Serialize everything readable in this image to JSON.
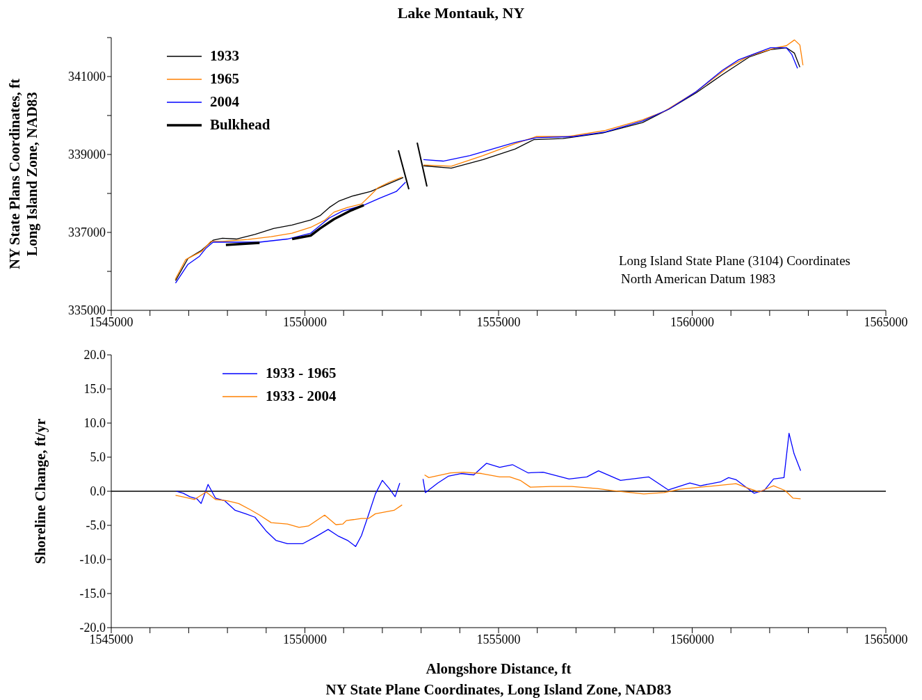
{
  "chart_data": [
    {
      "type": "line",
      "title": "Lake Montauk, NY",
      "ylabel": "NY State Plans Coordinates, ft\nLong Island Zone, NAD83",
      "annotations": [
        "Long Island State Plane (3104) Coordinates",
        "North American Datum 1983"
      ],
      "xlim": [
        1545000,
        1565000
      ],
      "xticks": [
        1545000,
        {
          "value": 1546000,
          "label": null
        },
        {
          "value": 1547000,
          "label": null
        },
        {
          "value": 1548000,
          "label": null
        },
        {
          "value": 1549000,
          "label": null
        },
        1550000,
        {
          "value": 1551000,
          "label": null
        },
        {
          "value": 1552000,
          "label": null
        },
        {
          "value": 1553000,
          "label": null
        },
        {
          "value": 1554000,
          "label": null
        },
        1555000,
        {
          "value": 1556000,
          "label": null
        },
        {
          "value": 1557000,
          "label": null
        },
        {
          "value": 1558000,
          "label": null
        },
        {
          "value": 1559000,
          "label": null
        },
        1560000,
        {
          "value": 1561000,
          "label": null
        },
        {
          "value": 1562000,
          "label": null
        },
        {
          "value": 1563000,
          "label": null
        },
        {
          "value": 1564000,
          "label": null
        },
        1565000
      ],
      "ylim": [
        335000,
        342000
      ],
      "yticks": [
        335000,
        {
          "value": 336000,
          "label": null
        },
        337000,
        {
          "value": 338000,
          "label": null
        },
        339000,
        {
          "value": 340000,
          "label": null
        },
        341000,
        {
          "value": 342000,
          "label": null
        }
      ],
      "legend": "top left",
      "marker": "none",
      "series": [
        {
          "name": "1933",
          "color": "#000000",
          "x": [
            1546660,
            1546980,
            1547330,
            1547630,
            1547870,
            1548230,
            1548710,
            1549190,
            1549670,
            1550150,
            1550390,
            1550630,
            1550870,
            1551220,
            1551700,
            1552120,
            1552540,
            1552800,
            1553060,
            1553780,
            1554600,
            1555430,
            1555910,
            1556660,
            1557690,
            1558720,
            1559410,
            1560100,
            1560780,
            1561470,
            1562020,
            1562430,
            1562640,
            1562780
          ],
          "values": [
            335760,
            336330,
            336540,
            336800,
            336850,
            336830,
            336950,
            337100,
            337190,
            337320,
            337430,
            337640,
            337800,
            337930,
            338050,
            338230,
            338410,
            null,
            338710,
            338650,
            338870,
            339140,
            339380,
            339410,
            339550,
            339820,
            340170,
            340580,
            341050,
            341500,
            341690,
            341740,
            341600,
            341240
          ]
        },
        {
          "name": "1965",
          "color": "#ff8000",
          "x": [
            1546650,
            1546920,
            1547330,
            1547570,
            1547870,
            1548530,
            1549130,
            1549670,
            1550150,
            1550510,
            1550750,
            1551100,
            1551460,
            1551700,
            1551880,
            1552180,
            1552510,
            1552800,
            1553060,
            1553780,
            1554600,
            1555430,
            1555980,
            1556800,
            1557760,
            1558720,
            1559270,
            1560100,
            1560920,
            1561470,
            1562160,
            1562430,
            1562640,
            1562780,
            1562860
          ],
          "values": [
            335790,
            336300,
            336510,
            336770,
            336770,
            336820,
            336890,
            336980,
            337130,
            337310,
            337520,
            337640,
            337730,
            337960,
            338140,
            338290,
            338420,
            null,
            338730,
            338700,
            338970,
            339280,
            339460,
            339460,
            339620,
            339890,
            340100,
            340610,
            341230,
            341530,
            341740,
            341790,
            341940,
            341810,
            341290
          ]
        },
        {
          "name": "2004",
          "color": "#0000ff",
          "x": [
            1546660,
            1546980,
            1547280,
            1547450,
            1547630,
            1547930,
            1548830,
            1549550,
            1550150,
            1550630,
            1550980,
            1551520,
            1551940,
            1552360,
            1552600,
            1552800,
            1553060,
            1553570,
            1554260,
            1555430,
            1555980,
            1556940,
            1557760,
            1558720,
            1559410,
            1560100,
            1560780,
            1561200,
            1562020,
            1562430,
            1562570,
            1562720
          ],
          "values": [
            335700,
            336180,
            336390,
            336600,
            336750,
            336750,
            336750,
            336830,
            336980,
            337370,
            337550,
            337700,
            337880,
            338050,
            338290,
            null,
            338870,
            338830,
            338970,
            339310,
            339430,
            339460,
            339580,
            339860,
            340170,
            340610,
            341160,
            341430,
            341740,
            341740,
            341570,
            341210
          ]
        },
        {
          "name": "Bulkhead",
          "color": "#000000",
          "x": [
            1547960,
            1548830,
            1549200,
            1549670,
            1550150,
            1550390,
            1550750,
            1551160,
            1551520
          ],
          "values": [
            336680,
            336730,
            null,
            336830,
            336920,
            337100,
            337340,
            337550,
            337700
          ]
        }
      ]
    },
    {
      "type": "line",
      "xlabel": "Alongshore Distance, ft\nNY State Plane Coordinates, Long Island Zone, NAD83",
      "ylabel": "Shoreline Change, ft/yr",
      "xlim": [
        1545000,
        1565000
      ],
      "xticks": [
        1545000,
        {
          "value": 1546000,
          "label": null
        },
        {
          "value": 1547000,
          "label": null
        },
        {
          "value": 1548000,
          "label": null
        },
        {
          "value": 1549000,
          "label": null
        },
        1550000,
        {
          "value": 1551000,
          "label": null
        },
        {
          "value": 1552000,
          "label": null
        },
        {
          "value": 1553000,
          "label": null
        },
        {
          "value": 1554000,
          "label": null
        },
        1555000,
        {
          "value": 1556000,
          "label": null
        },
        {
          "value": 1557000,
          "label": null
        },
        {
          "value": 1558000,
          "label": null
        },
        {
          "value": 1559000,
          "label": null
        },
        1560000,
        {
          "value": 1561000,
          "label": null
        },
        {
          "value": 1562000,
          "label": null
        },
        {
          "value": 1563000,
          "label": null
        },
        {
          "value": 1564000,
          "label": null
        },
        1565000
      ],
      "ylim": [
        -20,
        20
      ],
      "yticks": [
        {
          "value": -20,
          "label": "-20.0"
        },
        {
          "value": -15,
          "label": "-15.0"
        },
        {
          "value": -10,
          "label": "-10.0"
        },
        {
          "value": -5,
          "label": "-5.0"
        },
        {
          "value": 0,
          "label": "0.0"
        },
        {
          "value": 5,
          "label": "5.0"
        },
        {
          "value": 10,
          "label": "10.0"
        },
        {
          "value": 15,
          "label": "15.0"
        },
        {
          "value": 20,
          "label": "20.0"
        }
      ],
      "legend": "top left",
      "marker": "none",
      "ref_lines": [
        {
          "axis": "y",
          "value": 0,
          "label": null,
          "color": "#000000"
        }
      ],
      "series": [
        {
          "name": "1933 - 1965",
          "color": "#0000ff",
          "x": [
            1546680,
            1546860,
            1547030,
            1547210,
            1547320,
            1547500,
            1547690,
            1547930,
            1548200,
            1548470,
            1548710,
            1549010,
            1549250,
            1549550,
            1549940,
            1550270,
            1550600,
            1550870,
            1551100,
            1551310,
            1551460,
            1551640,
            1551820,
            1552000,
            1552180,
            1552330,
            1552450,
            1552750,
            1553050,
            1553110,
            1553430,
            1553700,
            1554030,
            1554360,
            1554690,
            1555030,
            1555360,
            1555760,
            1556150,
            1556820,
            1557280,
            1557580,
            1558150,
            1558880,
            1559380,
            1559940,
            1560210,
            1560740,
            1560940,
            1561130,
            1561600,
            1561870,
            1562100,
            1562370,
            1562500,
            1562630,
            1562800
          ],
          "values": [
            0,
            -0.3,
            -0.8,
            -1.1,
            -1.8,
            1.0,
            -1.0,
            -1.4,
            -2.8,
            -3.3,
            -3.8,
            -5.9,
            -7.2,
            -7.7,
            -7.7,
            -6.7,
            -5.6,
            -6.6,
            -7.2,
            -8.1,
            -6.5,
            -3.5,
            -0.4,
            1.6,
            0.4,
            -0.8,
            1.2,
            null,
            1.8,
            -0.2,
            1.2,
            2.2,
            2.6,
            2.4,
            4.1,
            3.5,
            3.9,
            2.7,
            2.8,
            1.8,
            2.1,
            3.0,
            1.6,
            2.1,
            0.2,
            1.2,
            0.8,
            1.4,
            2.0,
            1.7,
            -0.3,
            0.2,
            1.8,
            2.0,
            8.5,
            5.5,
            3.0
          ]
        },
        {
          "name": "1933 - 2004",
          "color": "#ff8000",
          "x": [
            1546660,
            1546920,
            1547150,
            1547450,
            1547690,
            1547990,
            1548290,
            1548590,
            1548830,
            1549130,
            1549550,
            1549850,
            1550090,
            1550510,
            1550800,
            1550980,
            1551070,
            1551460,
            1551640,
            1551820,
            1552300,
            1552510,
            1552800,
            1553090,
            1553200,
            1553760,
            1554100,
            1554560,
            1555030,
            1555290,
            1555560,
            1555820,
            1556350,
            1556890,
            1557550,
            1557950,
            1558750,
            1559280,
            1559680,
            1560210,
            1561130,
            1561470,
            1561730,
            1562100,
            1562400,
            1562600,
            1562800
          ],
          "values": [
            -0.6,
            -0.9,
            -1.2,
            -0.1,
            -1.2,
            -1.4,
            -1.8,
            -2.7,
            -3.5,
            -4.6,
            -4.8,
            -5.3,
            -5.1,
            -3.5,
            -4.9,
            -4.8,
            -4.3,
            -4.0,
            -4.0,
            -3.3,
            -2.8,
            -2.0,
            null,
            2.4,
            2.0,
            2.7,
            2.8,
            2.6,
            2.1,
            2.1,
            1.6,
            0.6,
            0.7,
            0.7,
            0.4,
            0.1,
            -0.4,
            -0.2,
            0.3,
            0.6,
            1.1,
            0.4,
            -0.1,
            0.8,
            0.1,
            -1.0,
            -1.1
          ]
        }
      ]
    }
  ]
}
